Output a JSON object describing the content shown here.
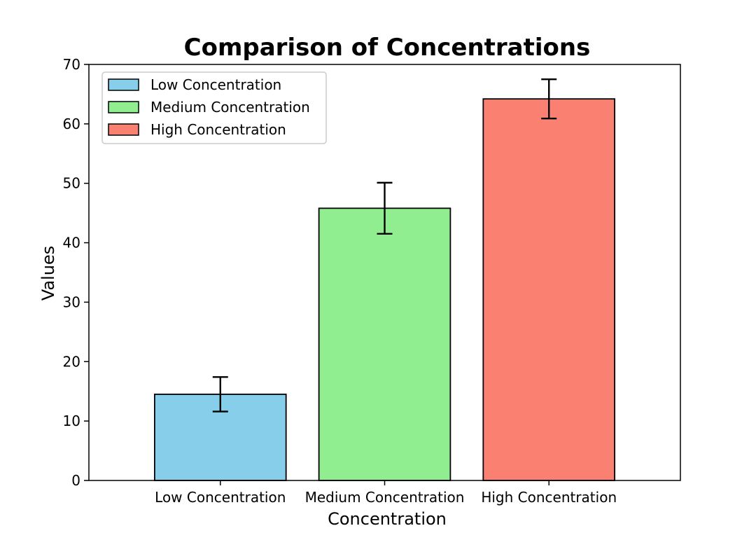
{
  "chart_data": {
    "type": "bar",
    "title": "Comparison of Concentrations",
    "xlabel": "Concentration",
    "ylabel": "Values",
    "ylim": [
      0,
      70
    ],
    "yticks": [
      0,
      10,
      20,
      30,
      40,
      50,
      60,
      70
    ],
    "grid": false,
    "legend_position": "top-left",
    "categories": [
      "Low Concentration",
      "Medium Concentration",
      "High Concentration"
    ],
    "values": [
      14.5,
      45.8,
      64.2
    ],
    "errors": [
      2.9,
      4.3,
      3.3
    ],
    "colors": [
      "#87CEEB",
      "#90EE90",
      "#FA8072"
    ],
    "legend": [
      "Low Concentration",
      "Medium Concentration",
      "High Concentration"
    ]
  }
}
